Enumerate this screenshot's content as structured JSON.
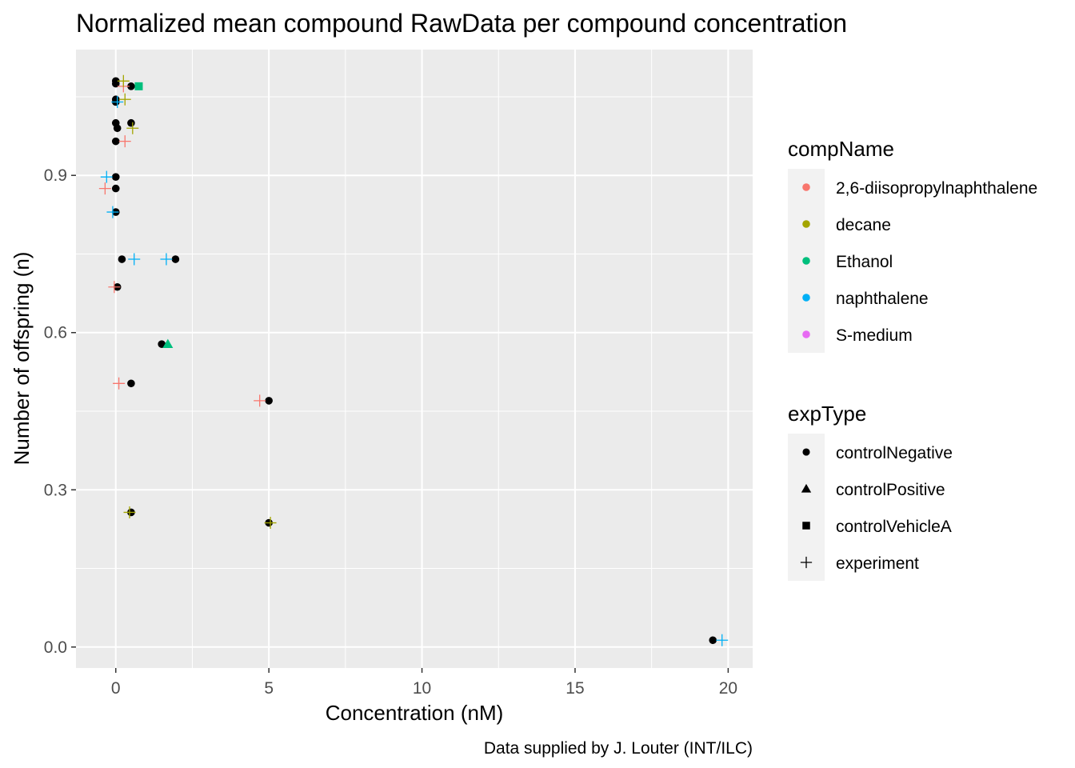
{
  "chart_data": {
    "type": "scatter",
    "title": "Normalized mean compound RawData per compound concentration",
    "xlabel": "Concentration (nM)",
    "ylabel": "Number of offspring (n)",
    "caption": "Data supplied by J. Louter (INT/ILC)",
    "xlim": [
      -1.3,
      20.8
    ],
    "ylim": [
      -0.04,
      1.14
    ],
    "x_ticks": [
      0,
      5,
      10,
      15,
      20
    ],
    "y_ticks": [
      0.0,
      0.3,
      0.6,
      0.9
    ],
    "x_tick_labels": [
      "0",
      "5",
      "10",
      "15",
      "20"
    ],
    "y_tick_labels": [
      "0.0",
      "0.3",
      "0.6",
      "0.9"
    ],
    "grid": true,
    "legend_position": "right",
    "legends": [
      {
        "title": "compName",
        "entries": [
          {
            "label": "2,6-diisopropylnaphthalene",
            "color": "#F8766D"
          },
          {
            "label": "decane",
            "color": "#A3A500"
          },
          {
            "label": "Ethanol",
            "color": "#00BF7D"
          },
          {
            "label": "naphthalene",
            "color": "#00B0F6"
          },
          {
            "label": "S-medium",
            "color": "#E76BF3"
          }
        ]
      },
      {
        "title": "expType",
        "entries": [
          {
            "label": "controlNegative",
            "shape": "circle"
          },
          {
            "label": "controlPositive",
            "shape": "triangle"
          },
          {
            "label": "controlVehicleA",
            "shape": "square"
          },
          {
            "label": "experiment",
            "shape": "plus"
          }
        ]
      }
    ],
    "series": [
      {
        "name": "2,6-diisopropylnaphthalene",
        "color": "#F8766D",
        "points": [
          {
            "x": 0.0,
            "y": 1.08,
            "expType": "controlNegative"
          },
          {
            "x": 0.25,
            "y": 1.07,
            "expType": "experiment"
          },
          {
            "x": 0.3,
            "y": 0.965,
            "expType": "experiment"
          },
          {
            "x": 0.0,
            "y": 0.965,
            "expType": "controlNegative"
          },
          {
            "x": -0.35,
            "y": 0.875,
            "expType": "experiment"
          },
          {
            "x": 0.0,
            "y": 0.875,
            "expType": "controlNegative"
          },
          {
            "x": -0.05,
            "y": 0.687,
            "expType": "experiment"
          },
          {
            "x": 0.05,
            "y": 0.687,
            "expType": "controlNegative"
          },
          {
            "x": 0.1,
            "y": 0.503,
            "expType": "experiment"
          },
          {
            "x": 0.5,
            "y": 0.503,
            "expType": "controlNegative"
          },
          {
            "x": 4.7,
            "y": 0.47,
            "expType": "experiment"
          },
          {
            "x": 5.0,
            "y": 0.47,
            "expType": "controlNegative"
          }
        ]
      },
      {
        "name": "decane",
        "color": "#A3A500",
        "points": [
          {
            "x": 0.0,
            "y": 1.075,
            "expType": "controlNegative"
          },
          {
            "x": 0.25,
            "y": 1.08,
            "expType": "experiment"
          },
          {
            "x": 0.5,
            "y": 1.07,
            "expType": "controlNegative"
          },
          {
            "x": 0.3,
            "y": 1.045,
            "expType": "experiment"
          },
          {
            "x": 0.0,
            "y": 1.045,
            "expType": "controlNegative"
          },
          {
            "x": 0.55,
            "y": 0.99,
            "expType": "experiment"
          },
          {
            "x": 0.05,
            "y": 0.99,
            "expType": "controlNegative"
          },
          {
            "x": 0.45,
            "y": 0.257,
            "expType": "experiment"
          },
          {
            "x": 0.5,
            "y": 0.257,
            "expType": "controlNegative"
          },
          {
            "x": 5.05,
            "y": 0.237,
            "expType": "experiment"
          },
          {
            "x": 5.0,
            "y": 0.237,
            "expType": "controlNegative"
          }
        ]
      },
      {
        "name": "Ethanol",
        "color": "#00BF7D",
        "points": [
          {
            "x": 0.75,
            "y": 1.07,
            "expType": "controlVehicleA"
          },
          {
            "x": 1.7,
            "y": 0.578,
            "expType": "controlPositive"
          },
          {
            "x": 1.5,
            "y": 0.578,
            "expType": "controlNegative"
          }
        ]
      },
      {
        "name": "naphthalene",
        "color": "#00B0F6",
        "points": [
          {
            "x": 0.05,
            "y": 1.04,
            "expType": "experiment"
          },
          {
            "x": 0.0,
            "y": 1.04,
            "expType": "controlNegative"
          },
          {
            "x": -0.3,
            "y": 0.897,
            "expType": "experiment"
          },
          {
            "x": 0.0,
            "y": 0.897,
            "expType": "controlNegative"
          },
          {
            "x": -0.1,
            "y": 0.83,
            "expType": "experiment"
          },
          {
            "x": 0.0,
            "y": 0.83,
            "expType": "controlNegative"
          },
          {
            "x": 0.6,
            "y": 0.74,
            "expType": "experiment"
          },
          {
            "x": 0.2,
            "y": 0.74,
            "expType": "controlNegative"
          },
          {
            "x": 1.65,
            "y": 0.74,
            "expType": "experiment"
          },
          {
            "x": 1.95,
            "y": 0.74,
            "expType": "controlNegative"
          },
          {
            "x": 19.8,
            "y": 0.013,
            "expType": "experiment"
          },
          {
            "x": 19.5,
            "y": 0.013,
            "expType": "controlNegative"
          }
        ]
      },
      {
        "name": "S-medium",
        "color": "#E76BF3",
        "points": [
          {
            "x": 0.0,
            "y": 1.0,
            "expType": "controlNegative"
          },
          {
            "x": 0.5,
            "y": 1.0,
            "expType": "controlNegative"
          }
        ]
      }
    ]
  }
}
